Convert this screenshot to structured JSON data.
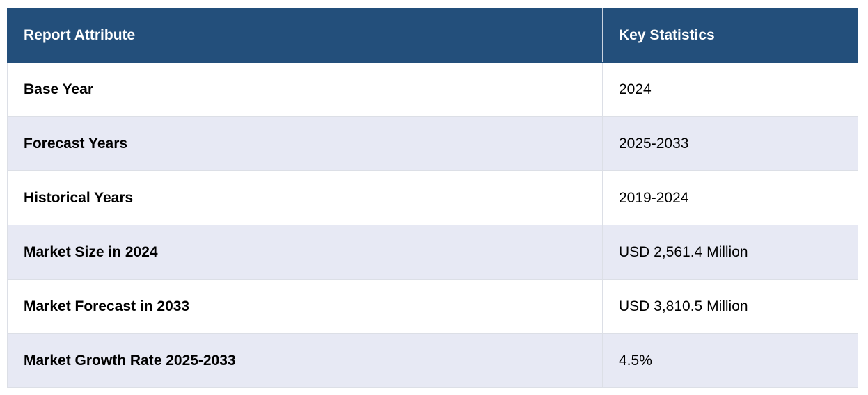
{
  "table": {
    "headers": [
      "Report Attribute",
      "Key Statistics"
    ],
    "rows": [
      {
        "attribute": "Base Year",
        "value": "2024"
      },
      {
        "attribute": "Forecast Years",
        "value": "2025-2033"
      },
      {
        "attribute": "Historical Years",
        "value": "2019-2024"
      },
      {
        "attribute": "Market Size in 2024",
        "value": "USD 2,561.4 Million"
      },
      {
        "attribute": "Market Forecast in 2033",
        "value": "USD 3,810.5 Million"
      },
      {
        "attribute": "Market Growth Rate 2025-2033",
        "value": "4.5%"
      }
    ]
  },
  "colors": {
    "header_bg": "#234f7b",
    "header_text": "#ffffff",
    "row_alt_bg": "#e7e9f4",
    "row_bg": "#ffffff"
  }
}
